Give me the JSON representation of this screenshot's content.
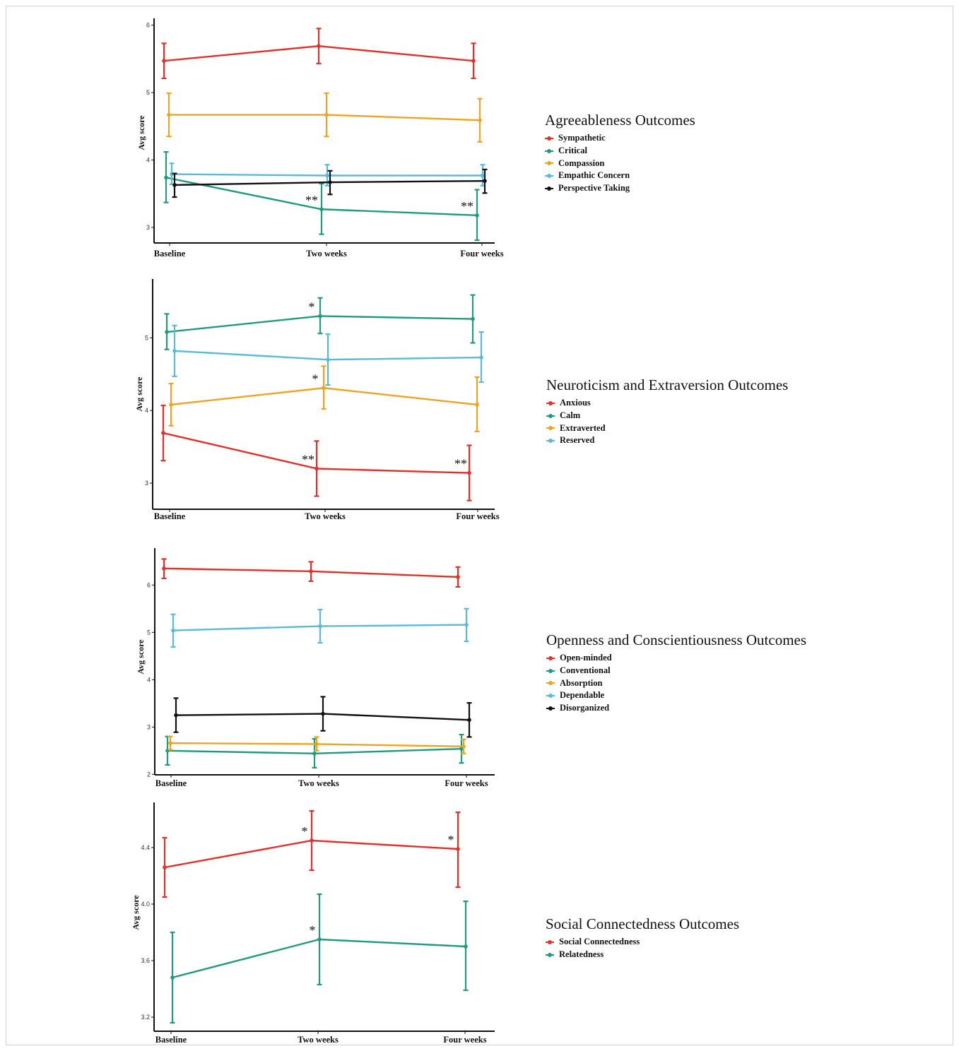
{
  "chart_data": [
    {
      "type": "line",
      "title": "Agreeableness Outcomes",
      "ylabel": "Avg score",
      "xlabel": "",
      "categories": [
        "Baseline",
        "Two weeks",
        "Four weeks"
      ],
      "ylim": [
        2.77,
        6.1
      ],
      "yticks": [
        3,
        4,
        5,
        6
      ],
      "legend_position": "right",
      "series": [
        {
          "name": "Sympathetic",
          "color": "#e3302a",
          "values": [
            5.47,
            5.69,
            5.47
          ],
          "lower": [
            5.21,
            5.43,
            5.21
          ],
          "upper": [
            5.73,
            5.95,
            5.73
          ],
          "stars": [
            "",
            "",
            ""
          ]
        },
        {
          "name": "Critical",
          "color": "#1f9b7e",
          "values": [
            3.74,
            3.27,
            3.18
          ],
          "lower": [
            3.37,
            2.9,
            2.81
          ],
          "upper": [
            4.12,
            3.65,
            3.56
          ],
          "stars": [
            "",
            "**",
            "**"
          ]
        },
        {
          "name": "Compassion",
          "color": "#f0a320",
          "values": [
            4.67,
            4.67,
            4.59
          ],
          "lower": [
            4.35,
            4.35,
            4.27
          ],
          "upper": [
            4.99,
            4.99,
            4.91
          ],
          "stars": [
            "",
            "",
            ""
          ]
        },
        {
          "name": "Empathic Concern",
          "color": "#5bbad9",
          "values": [
            3.79,
            3.77,
            3.77
          ],
          "lower": [
            3.64,
            3.62,
            3.62
          ],
          "upper": [
            3.95,
            3.93,
            3.93
          ],
          "stars": [
            "",
            "",
            ""
          ]
        },
        {
          "name": "Perspective Taking",
          "color": "#111111",
          "values": [
            3.63,
            3.67,
            3.69
          ],
          "lower": [
            3.45,
            3.49,
            3.51
          ],
          "upper": [
            3.8,
            3.84,
            3.86
          ],
          "stars": [
            "",
            "",
            ""
          ]
        }
      ]
    },
    {
      "type": "line",
      "title": "Neuroticism and Extraversion Outcomes",
      "ylabel": "Avg score",
      "xlabel": "",
      "categories": [
        "Baseline",
        "Two weeks",
        "Four weeks"
      ],
      "ylim": [
        2.64,
        5.81
      ],
      "yticks": [
        3,
        4,
        5
      ],
      "legend_position": "right",
      "series": [
        {
          "name": "Anxious",
          "color": "#e3302a",
          "values": [
            3.69,
            3.2,
            3.14
          ],
          "lower": [
            3.31,
            2.82,
            2.76
          ],
          "upper": [
            4.07,
            3.58,
            3.52
          ],
          "stars": [
            "",
            "**",
            "**"
          ]
        },
        {
          "name": "Calm",
          "color": "#1f9b7e",
          "values": [
            5.08,
            5.3,
            5.26
          ],
          "lower": [
            4.84,
            5.06,
            4.93
          ],
          "upper": [
            5.33,
            5.55,
            5.59
          ],
          "stars": [
            "",
            "*",
            ""
          ]
        },
        {
          "name": "Extraverted",
          "color": "#f0a320",
          "values": [
            4.08,
            4.31,
            4.08
          ],
          "lower": [
            3.79,
            4.02,
            3.71
          ],
          "upper": [
            4.37,
            4.61,
            4.46
          ],
          "stars": [
            "",
            "*",
            ""
          ]
        },
        {
          "name": "Reserved",
          "color": "#5bbad9",
          "values": [
            4.82,
            4.7,
            4.73
          ],
          "lower": [
            4.47,
            4.35,
            4.39
          ],
          "upper": [
            5.17,
            5.05,
            5.08
          ],
          "stars": [
            "",
            "",
            ""
          ]
        }
      ]
    },
    {
      "type": "line",
      "title": "Openness and Conscientiousness Outcomes",
      "ylabel": "Avg score",
      "xlabel": "",
      "categories": [
        "Baseline",
        "Two weeks",
        "Four weeks"
      ],
      "ylim": [
        1.99,
        6.78
      ],
      "yticks": [
        2,
        3,
        4,
        5,
        6
      ],
      "legend_position": "right",
      "series": [
        {
          "name": "Open-minded",
          "color": "#e3302a",
          "values": [
            6.35,
            6.29,
            6.17
          ],
          "lower": [
            6.14,
            6.08,
            5.96
          ],
          "upper": [
            6.55,
            6.49,
            6.38
          ],
          "stars": [
            "",
            "",
            ""
          ]
        },
        {
          "name": "Conventional",
          "color": "#1f9b7e",
          "values": [
            2.5,
            2.44,
            2.54
          ],
          "lower": [
            2.2,
            2.14,
            2.24
          ],
          "upper": [
            2.8,
            2.75,
            2.84
          ],
          "stars": [
            "",
            "",
            ""
          ]
        },
        {
          "name": "Absorption",
          "color": "#f0a320",
          "values": [
            2.66,
            2.64,
            2.59
          ],
          "lower": [
            2.52,
            2.5,
            2.44
          ],
          "upper": [
            2.8,
            2.79,
            2.74
          ],
          "stars": [
            "",
            "",
            ""
          ]
        },
        {
          "name": "Dependable",
          "color": "#5bbad9",
          "values": [
            5.04,
            5.13,
            5.16
          ],
          "lower": [
            4.69,
            4.78,
            4.81
          ],
          "upper": [
            5.38,
            5.48,
            5.5
          ],
          "stars": [
            "",
            "",
            ""
          ]
        },
        {
          "name": "Disorganized",
          "color": "#111111",
          "values": [
            3.25,
            3.28,
            3.15
          ],
          "lower": [
            2.89,
            2.92,
            2.79
          ],
          "upper": [
            3.61,
            3.64,
            3.51
          ],
          "stars": [
            "",
            "",
            ""
          ]
        }
      ]
    },
    {
      "type": "line",
      "title": "Social Connectedness Outcomes",
      "ylabel": "Avg score",
      "xlabel": "",
      "categories": [
        "Baseline",
        "Two weeks",
        "Four weeks"
      ],
      "ylim": [
        3.1,
        4.72
      ],
      "yticks": [
        3.2,
        3.6,
        4.0,
        4.4
      ],
      "ytick_labels": [
        "3.2",
        "3.6",
        "4.0",
        "4.4"
      ],
      "legend_position": "right",
      "series": [
        {
          "name": "Social Connectedness",
          "color": "#e3302a",
          "values": [
            4.26,
            4.45,
            4.39
          ],
          "lower": [
            4.05,
            4.24,
            4.12
          ],
          "upper": [
            4.47,
            4.66,
            4.65
          ],
          "stars": [
            "",
            "*",
            "*"
          ]
        },
        {
          "name": "Relatedness",
          "color": "#1f9b7e",
          "values": [
            3.48,
            3.75,
            3.7
          ],
          "lower": [
            3.16,
            3.43,
            3.39
          ],
          "upper": [
            3.8,
            4.07,
            4.02
          ],
          "stars": [
            "",
            "*",
            ""
          ]
        }
      ]
    }
  ]
}
